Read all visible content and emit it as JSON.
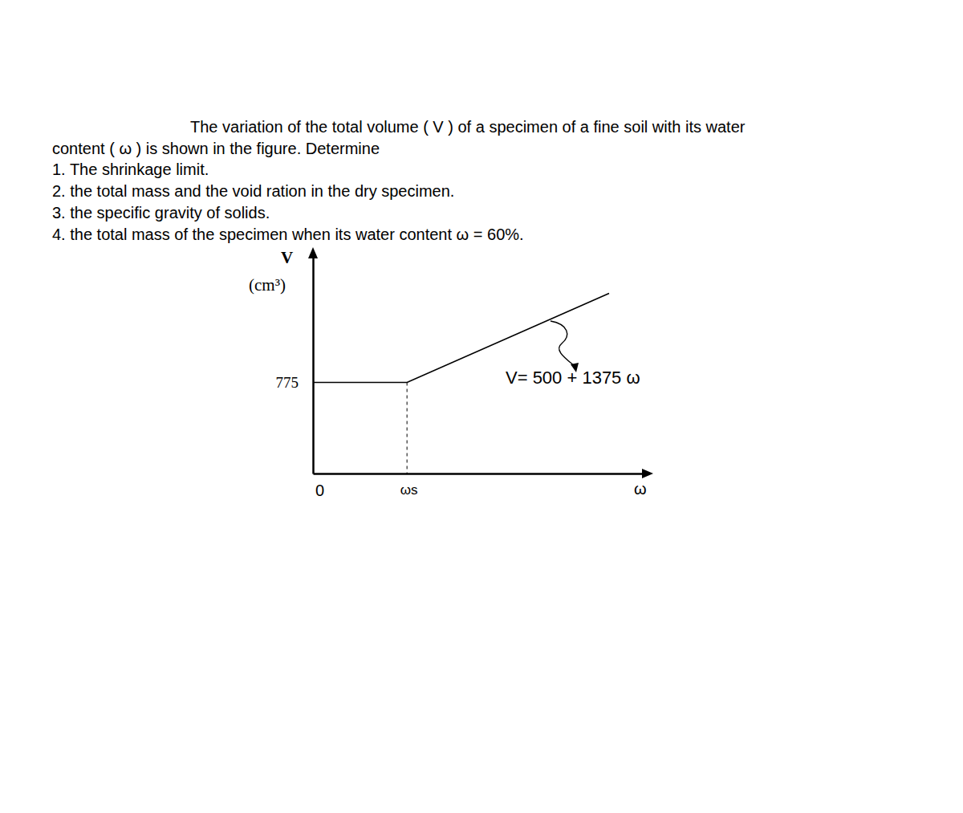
{
  "problem": {
    "intro_lines": [
      "The variation of the total volume ( V ) of a specimen of a fine soil with its water",
      "content ( ω ) is shown in the figure. Determine"
    ],
    "items": [
      "1. The shrinkage limit.",
      "2. the total mass and the void ration in the dry specimen.",
      "3. the specific gravity of solids.",
      "4. the total mass of the specimen when its water content ω = 60%."
    ]
  },
  "chart_data": {
    "type": "line",
    "xlabel": "ω",
    "ylabel": "V",
    "yunit": "(cm³)",
    "annotation": "V= 500 + 1375 ω",
    "x": [
      0,
      0.2,
      0.63
    ],
    "values": [
      775,
      775,
      1366.25
    ],
    "color": "#000000",
    "xlim": [
      0,
      0.7
    ],
    "ylim": [
      170,
      1620
    ],
    "xticks": [
      0,
      {
        "value": 0.2,
        "label": "ωs"
      }
    ],
    "yticks": [
      775
    ],
    "grid": false
  }
}
